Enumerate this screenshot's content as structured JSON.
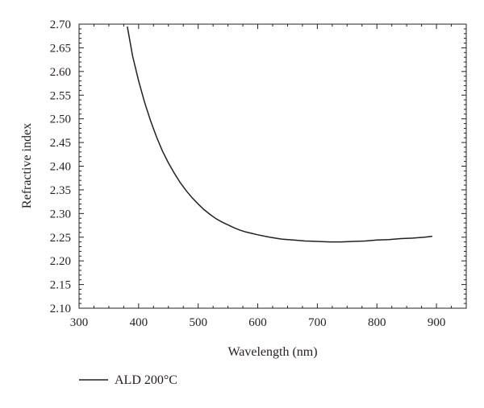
{
  "chart_data": {
    "type": "line",
    "xlabel": "Wavelength (nm)",
    "ylabel": "Refractive index",
    "xlim": [
      300,
      950
    ],
    "ylim": [
      2.1,
      2.7
    ],
    "x_ticks": [
      300,
      400,
      500,
      600,
      700,
      800,
      900
    ],
    "y_ticks": [
      2.1,
      2.15,
      2.2,
      2.25,
      2.3,
      2.35,
      2.4,
      2.45,
      2.5,
      2.55,
      2.6,
      2.65,
      2.7
    ],
    "grid": false,
    "legend_position": "bottom-left",
    "series": [
      {
        "name": "ALD 200°C",
        "color": "#231f20",
        "x": [
          381,
          390,
          400,
          410,
          420,
          430,
          440,
          450,
          460,
          470,
          480,
          490,
          500,
          510,
          520,
          530,
          540,
          550,
          560,
          570,
          580,
          590,
          600,
          620,
          640,
          660,
          680,
          700,
          720,
          740,
          760,
          780,
          800,
          820,
          840,
          860,
          880,
          893
        ],
        "y": [
          2.695,
          2.632,
          2.58,
          2.535,
          2.496,
          2.462,
          2.432,
          2.407,
          2.385,
          2.365,
          2.348,
          2.333,
          2.32,
          2.308,
          2.298,
          2.289,
          2.282,
          2.276,
          2.27,
          2.265,
          2.261,
          2.258,
          2.255,
          2.25,
          2.246,
          2.244,
          2.242,
          2.241,
          2.24,
          2.24,
          2.241,
          2.242,
          2.244,
          2.245,
          2.247,
          2.248,
          2.25,
          2.252
        ]
      }
    ]
  }
}
